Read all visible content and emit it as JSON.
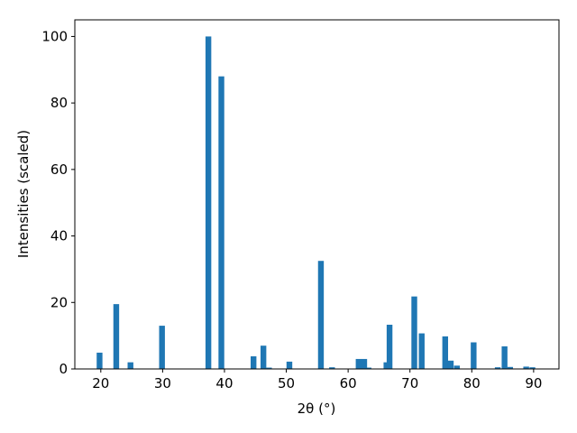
{
  "chart_data": {
    "type": "bar",
    "xlabel": "2θ (°)",
    "ylabel": "Intensities (scaled)",
    "x": [
      19.8,
      22.5,
      24.8,
      29.9,
      37.4,
      39.5,
      44.7,
      46.3,
      47.2,
      50.5,
      55.6,
      57.4,
      61.7,
      62.6,
      63.3,
      66.2,
      66.7,
      70.7,
      71.9,
      75.7,
      76.6,
      77.6,
      80.3,
      84.2,
      85.3,
      86.2,
      88.8,
      89.8
    ],
    "values": [
      4.9,
      19.5,
      2,
      13,
      100,
      88,
      3.8,
      7,
      0.4,
      2.2,
      32.5,
      0.5,
      3,
      3,
      0.4,
      2,
      13.3,
      21.8,
      10.7,
      9.8,
      2.5,
      1,
      8,
      0.5,
      6.8,
      0.6,
      0.7,
      0.5
    ],
    "color": "#1f77b4",
    "xlim": [
      15.8,
      94.1
    ],
    "ylim": [
      0,
      105
    ],
    "xticks": [
      20,
      30,
      40,
      50,
      60,
      70,
      80,
      90
    ],
    "yticks": [
      0,
      20,
      40,
      60,
      80,
      100
    ]
  }
}
